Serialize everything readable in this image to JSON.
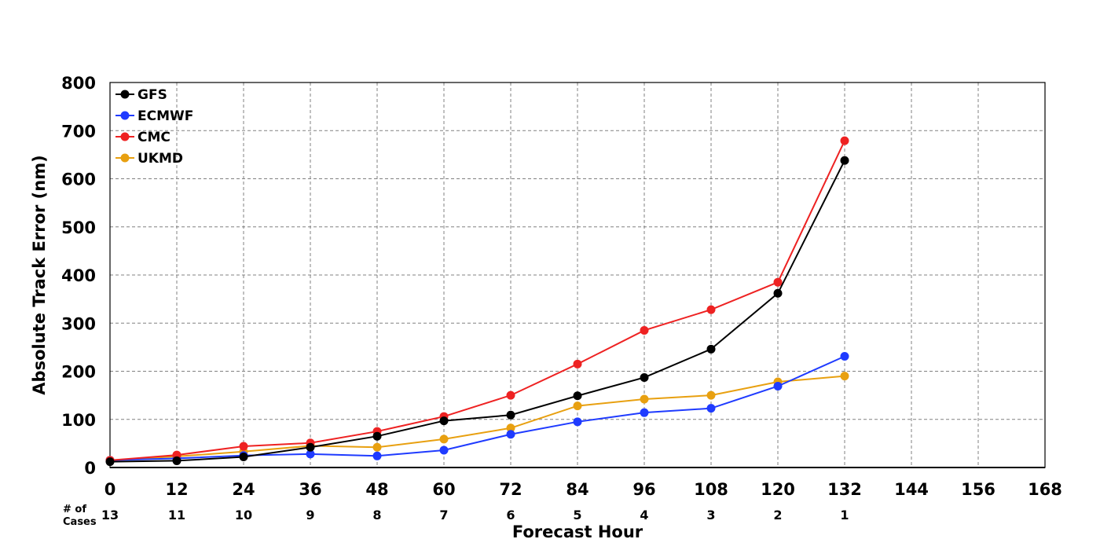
{
  "chart_data": {
    "type": "line",
    "title": "",
    "xlabel": "Forecast Hour",
    "ylabel": "Absolute Track Error (nm)",
    "xlim": [
      0,
      168
    ],
    "ylim": [
      0,
      800
    ],
    "x_ticks": [
      0,
      12,
      24,
      36,
      48,
      60,
      72,
      84,
      96,
      108,
      120,
      132,
      144,
      156,
      168
    ],
    "y_ticks": [
      0,
      100,
      200,
      300,
      400,
      500,
      600,
      700,
      800
    ],
    "grid": true,
    "legend_position": "top-left",
    "cases_label": "# of Cases",
    "cases": [
      13,
      11,
      10,
      9,
      8,
      7,
      6,
      5,
      4,
      3,
      2,
      1
    ],
    "x": [
      0,
      12,
      24,
      36,
      48,
      60,
      72,
      84,
      96,
      108,
      120,
      132
    ],
    "series": [
      {
        "name": "GFS",
        "color": "#000000",
        "values": [
          12,
          14,
          22,
          42,
          65,
          97,
          109,
          149,
          187,
          246,
          362,
          638
        ]
      },
      {
        "name": "ECMWF",
        "color": "#1f3bff",
        "values": [
          15,
          19,
          25,
          28,
          24,
          36,
          69,
          95,
          114,
          123,
          169,
          231
        ]
      },
      {
        "name": "CMC",
        "color": "#ee2222",
        "values": [
          15,
          26,
          44,
          51,
          75,
          106,
          150,
          215,
          285,
          328,
          385,
          679
        ]
      },
      {
        "name": "UKMD",
        "color": "#e8a010",
        "values": [
          15,
          23,
          33,
          45,
          42,
          59,
          82,
          128,
          142,
          150,
          178,
          190
        ]
      }
    ]
  }
}
